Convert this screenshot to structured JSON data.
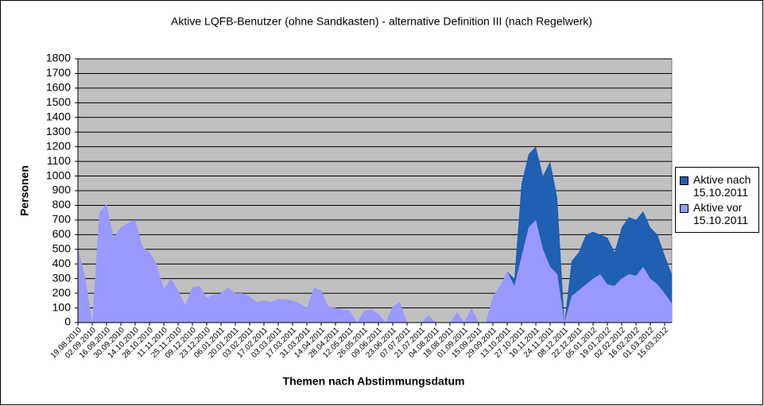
{
  "chart_data": {
    "type": "stacked_area",
    "title": "Aktive LQFB-Benutzer (ohne Sandkasten) - alternative Definition III (nach Regelwerk)",
    "x_label": "Themen nach Abstimmungsdatum",
    "y_label": "Personen",
    "categories": [
      "19.08.2010",
      null,
      "02.09.2010",
      null,
      "16.09.2010",
      null,
      "30.09.2010",
      null,
      "14.10.2010",
      null,
      "28.10.2010",
      null,
      "11.11.2010",
      null,
      "25.11.2010",
      null,
      "09.12.2010",
      null,
      "23.12.2010",
      null,
      "06.01.2011",
      null,
      "20.01.2011",
      null,
      "03.02.2011",
      null,
      "17.02.2011",
      null,
      "03.03.2011",
      null,
      "17.03.2011",
      null,
      "31.03.2011",
      null,
      "14.04.2011",
      null,
      "28.04.2011",
      null,
      "12.05.2011",
      null,
      "26.05.2011",
      null,
      "09.06.2011",
      null,
      "23.06.2011",
      null,
      "07.07.2011",
      null,
      "21.07.2011",
      null,
      "04.08.2011",
      null,
      "18.08.2011",
      null,
      "01.09.2011",
      null,
      "15.09.2011",
      null,
      "29.09.2011",
      null,
      "13.10.2011",
      null,
      "27.10.2011",
      null,
      "10.11.2011",
      null,
      "24.11.2011",
      null,
      "08.12.2011",
      null,
      "22.12.2011",
      null,
      "05.01.2012",
      null,
      "19.01.2012",
      null,
      "02.02.2012",
      null,
      "16.02.2012",
      null,
      "01.03.2012",
      null,
      "15.03.2012",
      null
    ],
    "series": [
      {
        "name": "Aktive vor 15.10.2011",
        "color": "#9999ff",
        "values": [
          500,
          320,
          0,
          750,
          810,
          580,
          650,
          680,
          700,
          520,
          480,
          400,
          230,
          300,
          220,
          120,
          240,
          250,
          170,
          190,
          200,
          240,
          200,
          200,
          180,
          140,
          150,
          140,
          160,
          160,
          150,
          130,
          100,
          240,
          220,
          110,
          100,
          90,
          80,
          0,
          80,
          90,
          60,
          0,
          110,
          140,
          0,
          0,
          0,
          50,
          0,
          0,
          0,
          70,
          0,
          100,
          0,
          0,
          180,
          250,
          350,
          250,
          450,
          650,
          700,
          500,
          380,
          330,
          0,
          180,
          220,
          260,
          300,
          330,
          260,
          250,
          300,
          330,
          320,
          380,
          300,
          260,
          200,
          130
        ]
      },
      {
        "name": "Aktive nach 15.10.2011",
        "color": "#1f5fb4",
        "values": [
          0,
          0,
          0,
          0,
          0,
          0,
          0,
          0,
          0,
          0,
          0,
          0,
          0,
          0,
          0,
          0,
          0,
          0,
          0,
          0,
          0,
          0,
          0,
          0,
          0,
          0,
          0,
          0,
          0,
          0,
          0,
          0,
          0,
          0,
          0,
          0,
          0,
          0,
          0,
          0,
          0,
          0,
          0,
          0,
          0,
          0,
          0,
          0,
          0,
          0,
          0,
          0,
          0,
          0,
          0,
          0,
          0,
          0,
          0,
          0,
          0,
          50,
          500,
          500,
          500,
          500,
          720,
          520,
          0,
          240,
          260,
          340,
          320,
          270,
          320,
          230,
          350,
          390,
          380,
          380,
          350,
          340,
          260,
          200
        ]
      }
    ],
    "ylim": [
      0,
      1800
    ],
    "yticks": [
      0,
      100,
      200,
      300,
      400,
      500,
      600,
      700,
      800,
      900,
      1000,
      1100,
      1200,
      1300,
      1400,
      1500,
      1600,
      1700,
      1800
    ],
    "grid": true,
    "legend": "right",
    "plot_background": "#c0c0c0"
  }
}
